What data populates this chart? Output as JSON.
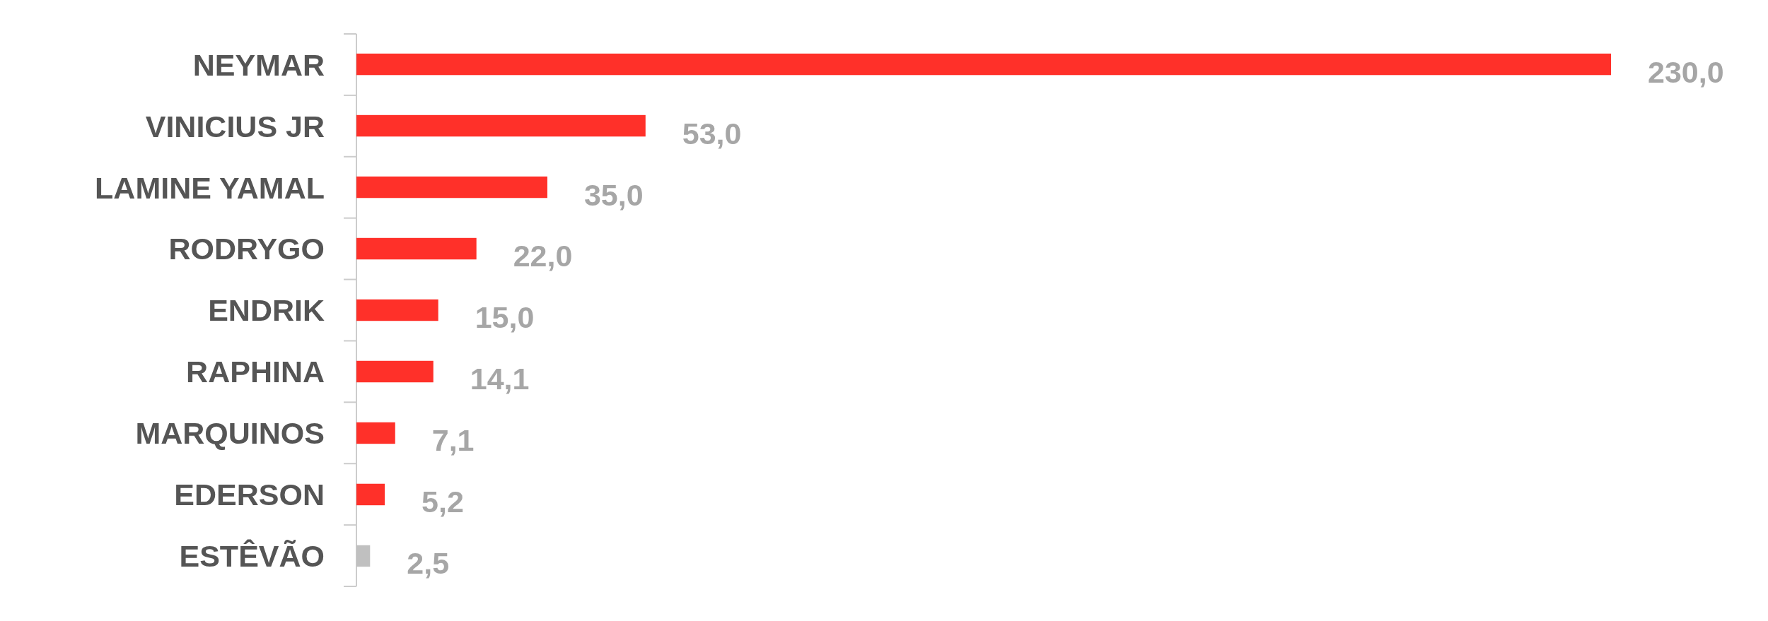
{
  "chart_data": {
    "type": "bar",
    "orientation": "horizontal",
    "categories": [
      "NEYMAR",
      "VINICIUS JR",
      "LAMINE YAMAL",
      "RODRYGO",
      "ENDRIK",
      "RAPHINA",
      "MARQUINOS",
      "EDERSON",
      "ESTÊVÃO"
    ],
    "values": [
      230,
      53,
      35,
      22,
      15,
      14.1,
      7.1,
      5.2,
      2.5
    ],
    "colors": [
      "#ff3029",
      "#ff3029",
      "#ff3029",
      "#ff3029",
      "#ff3029",
      "#ff3029",
      "#ff3029",
      "#ff3029",
      "#c0c0c0"
    ],
    "value_labels": [
      "230,0",
      "53,0",
      "35,0",
      "22,0",
      "15,0",
      "14,1",
      "7,1",
      "5,2",
      "2,5"
    ]
  }
}
